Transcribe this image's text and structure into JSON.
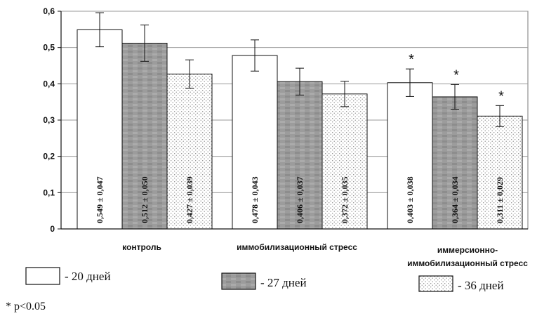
{
  "chart_data": {
    "type": "bar",
    "yaxis": {
      "min": 0,
      "max": 0.6,
      "step": 0.1,
      "tick_labels": [
        "0",
        "0,1",
        "0,2",
        "0,3",
        "0,4",
        "0,5",
        "0,6"
      ],
      "grid": true
    },
    "categories": [
      {
        "lines": [
          "контроль"
        ]
      },
      {
        "lines": [
          "иммобилизационный стресс"
        ]
      },
      {
        "lines": [
          "иммерсионно-",
          "иммобилизационный стресс"
        ]
      }
    ],
    "series": [
      {
        "name": "- 20 дней",
        "fill": "white",
        "values": [
          0.549,
          0.478,
          0.403
        ],
        "errors": [
          0.047,
          0.043,
          0.038
        ],
        "labels": [
          "0,549 ± 0,047",
          "0,478 ± 0,043",
          "0,403 ± 0,038"
        ],
        "significant": [
          false,
          false,
          true
        ]
      },
      {
        "name": "- 27 дней",
        "fill": "gray",
        "values": [
          0.512,
          0.406,
          0.364
        ],
        "errors": [
          0.05,
          0.037,
          0.034
        ],
        "labels": [
          "0,512 ± 0,050",
          "0,406 ± 0,037",
          "0,364 ± 0,034"
        ],
        "significant": [
          false,
          false,
          true
        ]
      },
      {
        "name": "- 36 дней",
        "fill": "dotted",
        "values": [
          0.427,
          0.372,
          0.311
        ],
        "errors": [
          0.039,
          0.035,
          0.029
        ],
        "labels": [
          "0,427 ± 0,039",
          "0,372 ± 0,035",
          "0,311 ± 0,029"
        ],
        "significant": [
          false,
          false,
          true
        ]
      }
    ],
    "significance_marker": "*",
    "legend_position": "bottom"
  },
  "footnote": "* p<0.05",
  "colors": {
    "gray_bar": "#9c9c9c",
    "gray_bar_dark": "#8a8a8a",
    "grid": "#9a9a9a",
    "axis": "#111111",
    "dot": "#8c8c8c"
  }
}
